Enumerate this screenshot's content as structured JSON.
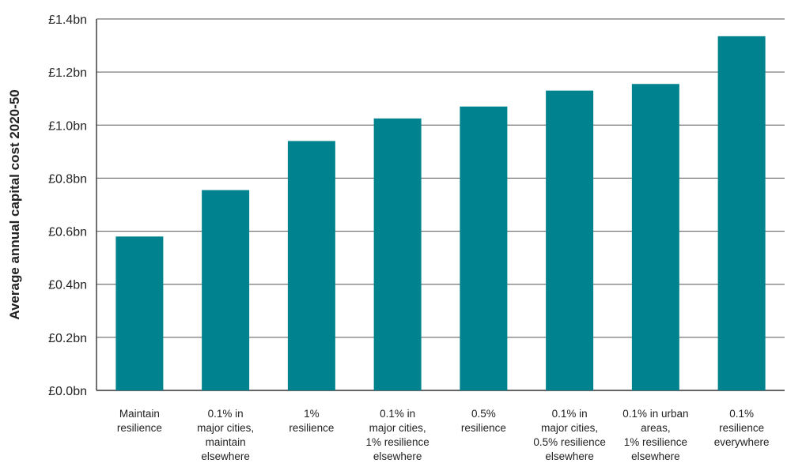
{
  "chart_data": {
    "type": "bar",
    "ylabel": "Average annual capital cost 2020-50",
    "xlabel": "",
    "ylim": [
      0,
      1.4
    ],
    "y_ticks": [
      {
        "value": 0.0,
        "label": "£0.0bn"
      },
      {
        "value": 0.2,
        "label": "£0.2bn"
      },
      {
        "value": 0.4,
        "label": "£0.4bn"
      },
      {
        "value": 0.6,
        "label": "£0.6bn"
      },
      {
        "value": 0.8,
        "label": "£0.8bn"
      },
      {
        "value": 1.0,
        "label": "£1.0bn"
      },
      {
        "value": 1.2,
        "label": "£1.2bn"
      },
      {
        "value": 1.4,
        "label": "£1.4bn"
      }
    ],
    "grid": true,
    "legend": "none",
    "bar_color": "#00838F",
    "categories": [
      [
        "Maintain",
        "resilience"
      ],
      [
        "0.1% in",
        "major cities,",
        "maintain",
        "elsewhere"
      ],
      [
        "1%",
        "resilience"
      ],
      [
        "0.1% in",
        "major cities,",
        "1% resilience",
        "elsewhere"
      ],
      [
        "0.5%",
        "resilience"
      ],
      [
        "0.1% in",
        "major cities,",
        "0.5% resilience",
        "elsewhere"
      ],
      [
        "0.1% in urban",
        "areas,",
        "1% resilience",
        "elsewhere"
      ],
      [
        "0.1%",
        "resilience",
        "everywhere"
      ]
    ],
    "values": [
      0.58,
      0.755,
      0.94,
      1.025,
      1.07,
      1.13,
      1.155,
      1.335
    ]
  }
}
